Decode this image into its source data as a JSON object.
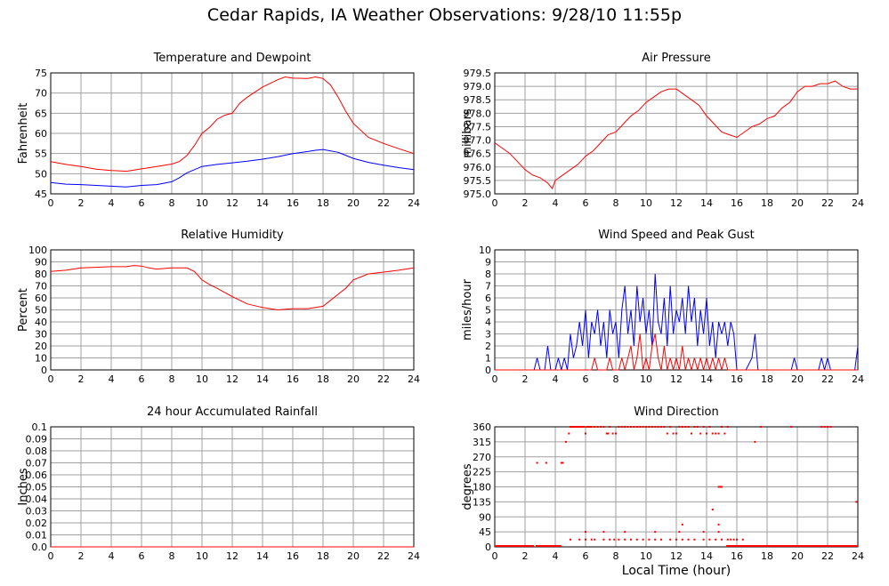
{
  "page": {
    "title": "Cedar Rapids, IA Weather Observations: 9/28/10 11:55p",
    "xlabel": "Local Time (hour)"
  },
  "colors": {
    "red": "#ff0000",
    "blue": "#0000ff",
    "grid": "#a0a0a0",
    "axis": "#000000"
  },
  "chart_data": [
    {
      "id": "temperature",
      "type": "line",
      "title": "Temperature and Dewpoint",
      "ylabel": "Fahrenheit",
      "xlim": [
        0,
        24
      ],
      "ylim": [
        45,
        75
      ],
      "xticks": [
        0,
        2,
        4,
        6,
        8,
        10,
        12,
        14,
        16,
        18,
        20,
        22,
        24
      ],
      "yticks": [
        45,
        50,
        55,
        60,
        65,
        70,
        75
      ],
      "ytick_labels": [
        "45",
        "50",
        "55",
        "60",
        "65",
        "70",
        "75"
      ],
      "grid": true,
      "series": [
        {
          "color": "#ff0000",
          "x": [
            0,
            1,
            2,
            3,
            4,
            5,
            5.5,
            6,
            7,
            8,
            8.5,
            9,
            9.5,
            10,
            10.5,
            11,
            11.5,
            12,
            12.5,
            13,
            14,
            15,
            15.5,
            16,
            17,
            17.5,
            18,
            18.5,
            19,
            19.5,
            20,
            21,
            22,
            23,
            24
          ],
          "y": [
            53,
            52.3,
            51.8,
            51.1,
            50.8,
            50.6,
            50.9,
            51.2,
            51.8,
            52.4,
            53,
            54.5,
            57,
            60,
            61.5,
            63.5,
            64.5,
            65,
            67.5,
            69,
            71.5,
            73.3,
            74,
            73.7,
            73.6,
            74,
            73.6,
            72,
            69,
            65.5,
            62.5,
            59,
            57.5,
            56.2,
            55
          ]
        },
        {
          "color": "#0000ff",
          "x": [
            0,
            1,
            2,
            3,
            4,
            5,
            6,
            7,
            8,
            8.5,
            9,
            9.5,
            10,
            11,
            12,
            13,
            14,
            15,
            16,
            17,
            17.5,
            18,
            19,
            20,
            21,
            22,
            23,
            24
          ],
          "y": [
            47.8,
            47.4,
            47.3,
            47.1,
            46.9,
            46.7,
            47.1,
            47.3,
            48,
            49,
            50.2,
            51,
            51.8,
            52.3,
            52.7,
            53.1,
            53.6,
            54.2,
            55,
            55.5,
            55.8,
            56,
            55.3,
            53.8,
            52.8,
            52.1,
            51.5,
            51
          ]
        }
      ]
    },
    {
      "id": "pressure",
      "type": "line",
      "title": "Air Pressure",
      "ylabel": "millibars",
      "xlim": [
        0,
        24
      ],
      "ylim": [
        975.0,
        979.5
      ],
      "xticks": [
        0,
        2,
        4,
        6,
        8,
        10,
        12,
        14,
        16,
        18,
        20,
        22,
        24
      ],
      "yticks": [
        975.0,
        975.5,
        976.0,
        976.5,
        977.0,
        977.5,
        978.0,
        978.5,
        979.0,
        979.5
      ],
      "ytick_labels": [
        "975.0",
        "975.5",
        "976.0",
        "976.5",
        "977.0",
        "977.5",
        "978.0",
        "978.5",
        "979.0",
        "979.5"
      ],
      "grid": true,
      "series": [
        {
          "color": "#ff0000",
          "x": [
            0,
            0.5,
            1,
            1.5,
            2,
            2.5,
            3,
            3.5,
            3.8,
            4,
            4.5,
            5,
            5.5,
            6,
            6.5,
            7,
            7.5,
            8,
            8.5,
            9,
            9.5,
            10,
            10.5,
            11,
            11.5,
            12,
            12.5,
            13,
            13.5,
            14,
            14.5,
            15,
            15.5,
            16,
            16.5,
            17,
            17.5,
            18,
            18.5,
            19,
            19.5,
            20,
            20.5,
            21,
            21.5,
            22,
            22.5,
            23,
            23.5,
            24
          ],
          "y": [
            976.9,
            976.7,
            976.5,
            976.2,
            975.9,
            975.7,
            975.6,
            975.4,
            975.2,
            975.5,
            975.7,
            975.9,
            976.1,
            976.4,
            976.6,
            976.9,
            977.2,
            977.3,
            977.6,
            977.9,
            978.1,
            978.4,
            978.6,
            978.8,
            978.9,
            978.9,
            978.7,
            978.5,
            978.3,
            977.9,
            977.6,
            977.3,
            977.2,
            977.1,
            977.3,
            977.5,
            977.6,
            977.8,
            977.9,
            978.2,
            978.4,
            978.8,
            979.0,
            979.0,
            979.1,
            979.1,
            979.2,
            979.0,
            978.9,
            978.9
          ]
        }
      ]
    },
    {
      "id": "humidity",
      "type": "line",
      "title": "Relative Humidity",
      "ylabel": "Percent",
      "xlim": [
        0,
        24
      ],
      "ylim": [
        0,
        100
      ],
      "xticks": [
        0,
        2,
        4,
        6,
        8,
        10,
        12,
        14,
        16,
        18,
        20,
        22,
        24
      ],
      "yticks": [
        0,
        10,
        20,
        30,
        40,
        50,
        60,
        70,
        80,
        90,
        100
      ],
      "ytick_labels": [
        "0",
        "10",
        "20",
        "30",
        "40",
        "50",
        "60",
        "70",
        "80",
        "90",
        "100"
      ],
      "grid": true,
      "series": [
        {
          "color": "#ff0000",
          "x": [
            0,
            1,
            2,
            3,
            4,
            5,
            5.5,
            6,
            6.5,
            7,
            8,
            9,
            9.5,
            10,
            10.5,
            11,
            12,
            13,
            14,
            15,
            16,
            17,
            18,
            18.5,
            19,
            19.5,
            20,
            21,
            22,
            23,
            24
          ],
          "y": [
            82,
            83,
            85,
            85.5,
            86,
            86,
            87,
            86.5,
            85,
            84,
            85,
            85,
            82,
            75,
            71,
            68,
            61,
            55,
            52,
            50,
            51,
            51,
            53,
            58,
            63,
            68,
            75,
            80,
            81.5,
            83,
            85
          ]
        }
      ]
    },
    {
      "id": "wind",
      "type": "line",
      "title": "Wind Speed and Peak Gust",
      "ylabel": "miles/hour",
      "xlim": [
        0,
        24
      ],
      "ylim": [
        0,
        10
      ],
      "xticks": [
        0,
        2,
        4,
        6,
        8,
        10,
        12,
        14,
        16,
        18,
        20,
        22,
        24
      ],
      "yticks": [
        0,
        1,
        2,
        3,
        4,
        5,
        6,
        7,
        8,
        9,
        10
      ],
      "ytick_labels": [
        "0",
        "1",
        "2",
        "3",
        "4",
        "5",
        "6",
        "7",
        "8",
        "9",
        "10"
      ],
      "grid": true,
      "series": [
        {
          "color": "#0000ff",
          "x": [
            0,
            2.6,
            2.8,
            3.0,
            3.3,
            3.5,
            3.7,
            4.0,
            4.2,
            4.4,
            4.6,
            4.8,
            5.0,
            5.2,
            5.4,
            5.6,
            5.8,
            6.0,
            6.2,
            6.4,
            6.6,
            6.8,
            7.0,
            7.2,
            7.4,
            7.6,
            7.8,
            8.0,
            8.2,
            8.4,
            8.6,
            8.8,
            9.0,
            9.2,
            9.4,
            9.6,
            9.8,
            10.0,
            10.2,
            10.4,
            10.6,
            10.8,
            11.0,
            11.2,
            11.4,
            11.6,
            11.8,
            12.0,
            12.2,
            12.4,
            12.6,
            12.8,
            13.0,
            13.2,
            13.4,
            13.6,
            13.8,
            14.0,
            14.2,
            14.4,
            14.6,
            14.8,
            15.0,
            15.2,
            15.4,
            15.6,
            15.8,
            16.0,
            16.6,
            17.0,
            17.2,
            17.4,
            17.6,
            19.6,
            19.8,
            20.0,
            21.4,
            21.6,
            21.8,
            22.0,
            22.2,
            22.4,
            23.8,
            24.0
          ],
          "y": [
            0,
            0,
            1,
            0,
            0,
            2,
            0,
            0,
            1,
            0,
            1,
            0,
            3,
            1,
            2,
            4,
            2,
            5,
            1,
            4,
            3,
            5,
            2,
            4,
            1,
            5,
            3,
            4,
            1,
            5,
            7,
            3,
            5,
            2,
            7,
            4,
            6,
            3,
            5,
            2,
            8,
            4,
            3,
            6,
            2,
            7,
            3,
            5,
            4,
            6,
            3,
            7,
            4,
            6,
            2,
            5,
            3,
            6,
            2,
            4,
            1,
            4,
            3,
            4,
            2,
            4,
            3,
            0,
            0,
            1,
            3,
            0,
            0,
            0,
            1,
            0,
            0,
            1,
            0,
            1,
            0,
            0,
            0,
            2
          ]
        },
        {
          "color": "#ff0000",
          "x": [
            0,
            6.4,
            6.6,
            6.8,
            7.4,
            7.6,
            7.8,
            8.2,
            8.4,
            8.6,
            8.8,
            9.0,
            9.2,
            9.4,
            9.6,
            9.8,
            10.0,
            10.2,
            10.4,
            10.6,
            10.8,
            11.0,
            11.2,
            11.4,
            11.6,
            11.8,
            12.0,
            12.2,
            12.4,
            12.6,
            12.8,
            13.0,
            13.2,
            13.4,
            13.6,
            13.8,
            14.0,
            14.2,
            14.4,
            14.6,
            14.8,
            15.0,
            15.2,
            15.4,
            15.6,
            24.0
          ],
          "y": [
            0,
            0,
            1,
            0,
            0,
            1,
            0,
            0,
            1,
            0,
            1,
            2,
            0,
            1,
            3,
            0,
            1,
            0,
            2,
            3,
            1,
            0,
            2,
            0,
            1,
            0,
            1,
            0,
            2,
            0,
            1,
            0,
            1,
            0,
            1,
            0,
            1,
            0,
            1,
            0,
            1,
            0,
            1,
            0,
            0,
            0
          ]
        }
      ]
    },
    {
      "id": "rainfall",
      "type": "line",
      "title": "24 hour Accumulated Rainfall",
      "ylabel": "Inches",
      "xlim": [
        0,
        24
      ],
      "ylim": [
        0,
        0.1
      ],
      "xticks": [
        0,
        2,
        4,
        6,
        8,
        10,
        12,
        14,
        16,
        18,
        20,
        22,
        24
      ],
      "yticks": [
        0,
        0.01,
        0.02,
        0.03,
        0.04,
        0.05,
        0.06,
        0.07,
        0.08,
        0.09,
        0.1
      ],
      "ytick_labels": [
        "0.0",
        "0.01",
        "0.02",
        "0.03",
        "0.04",
        "0.05",
        "0.06",
        "0.07",
        "0.08",
        "0.09",
        "0.1"
      ],
      "grid": true,
      "series": [
        {
          "color": "#ff0000",
          "x": [
            0,
            24
          ],
          "y": [
            0,
            0
          ]
        }
      ]
    },
    {
      "id": "direction",
      "type": "scatter",
      "title": "Wind Direction",
      "ylabel": "degrees",
      "xlim": [
        0,
        24
      ],
      "ylim": [
        0,
        360
      ],
      "xticks": [
        0,
        2,
        4,
        6,
        8,
        10,
        12,
        14,
        16,
        18,
        20,
        22,
        24
      ],
      "yticks": [
        0,
        45,
        90,
        135,
        180,
        225,
        270,
        315,
        360
      ],
      "ytick_labels": [
        "0",
        "45",
        "90",
        "135",
        "180",
        "225",
        "270",
        "315",
        "360"
      ],
      "grid": true,
      "baseline_runs": [
        [
          0,
          2.6
        ],
        [
          2.7,
          4.4
        ],
        [
          15.3,
          24
        ]
      ],
      "series": [
        {
          "color": "#ff0000",
          "x": [
            2.8,
            3.4,
            4.4,
            4.5,
            4.7,
            4.9,
            5.0,
            5.1,
            5.2,
            5.3,
            5.4,
            5.5,
            5.6,
            5.7,
            5.8,
            5.9,
            6.0,
            6.1,
            6.2,
            6.3,
            6.4,
            6.6,
            6.8,
            7.0,
            7.2,
            7.4,
            7.5,
            7.6,
            7.8,
            8.0,
            8.2,
            8.4,
            8.6,
            8.8,
            9.0,
            9.2,
            9.4,
            9.6,
            9.8,
            10.0,
            10.2,
            10.4,
            10.6,
            10.8,
            11.0,
            11.2,
            11.4,
            11.6,
            11.8,
            12.0,
            12.2,
            12.4,
            12.6,
            12.8,
            13.0,
            13.2,
            13.4,
            13.6,
            13.8,
            14.0,
            14.2,
            14.4,
            14.6,
            14.8,
            15.0,
            15.2,
            15.4,
            17.2,
            17.6,
            19.6,
            21.6,
            21.8,
            22.0,
            22.2,
            5.0,
            5.6,
            6.0,
            6.4,
            6.6,
            7.2,
            7.6,
            7.9,
            8.2,
            8.6,
            9.0,
            9.4,
            9.8,
            10.2,
            10.6,
            11.0,
            11.6,
            12.0,
            12.4,
            12.8,
            13.2,
            13.8,
            14.2,
            14.6,
            15.0,
            15.4,
            15.6,
            15.8,
            16.0,
            16.4,
            14.8,
            14.9,
            15.0,
            14.4,
            12.4,
            14.8,
            23.9,
            6.0,
            7.2,
            8.6,
            10.6,
            12.2,
            13.8,
            14.8
          ],
          "y": [
            252,
            252,
            252,
            252,
            315,
            340,
            360,
            360,
            360,
            360,
            360,
            360,
            360,
            360,
            360,
            360,
            340,
            360,
            360,
            360,
            360,
            360,
            360,
            360,
            360,
            340,
            340,
            360,
            340,
            340,
            360,
            360,
            360,
            360,
            360,
            360,
            360,
            360,
            360,
            360,
            360,
            360,
            360,
            360,
            360,
            360,
            340,
            360,
            340,
            340,
            360,
            360,
            360,
            360,
            340,
            360,
            360,
            340,
            360,
            340,
            360,
            340,
            340,
            340,
            360,
            340,
            360,
            315,
            360,
            360,
            360,
            360,
            360,
            360,
            22,
            22,
            22,
            22,
            22,
            22,
            22,
            22,
            22,
            22,
            22,
            22,
            22,
            22,
            22,
            22,
            22,
            22,
            22,
            22,
            22,
            22,
            22,
            22,
            22,
            22,
            22,
            22,
            22,
            22,
            180,
            180,
            180,
            112,
            67,
            67,
            135,
            45,
            45,
            45,
            45,
            45,
            45,
            45
          ]
        }
      ]
    }
  ]
}
